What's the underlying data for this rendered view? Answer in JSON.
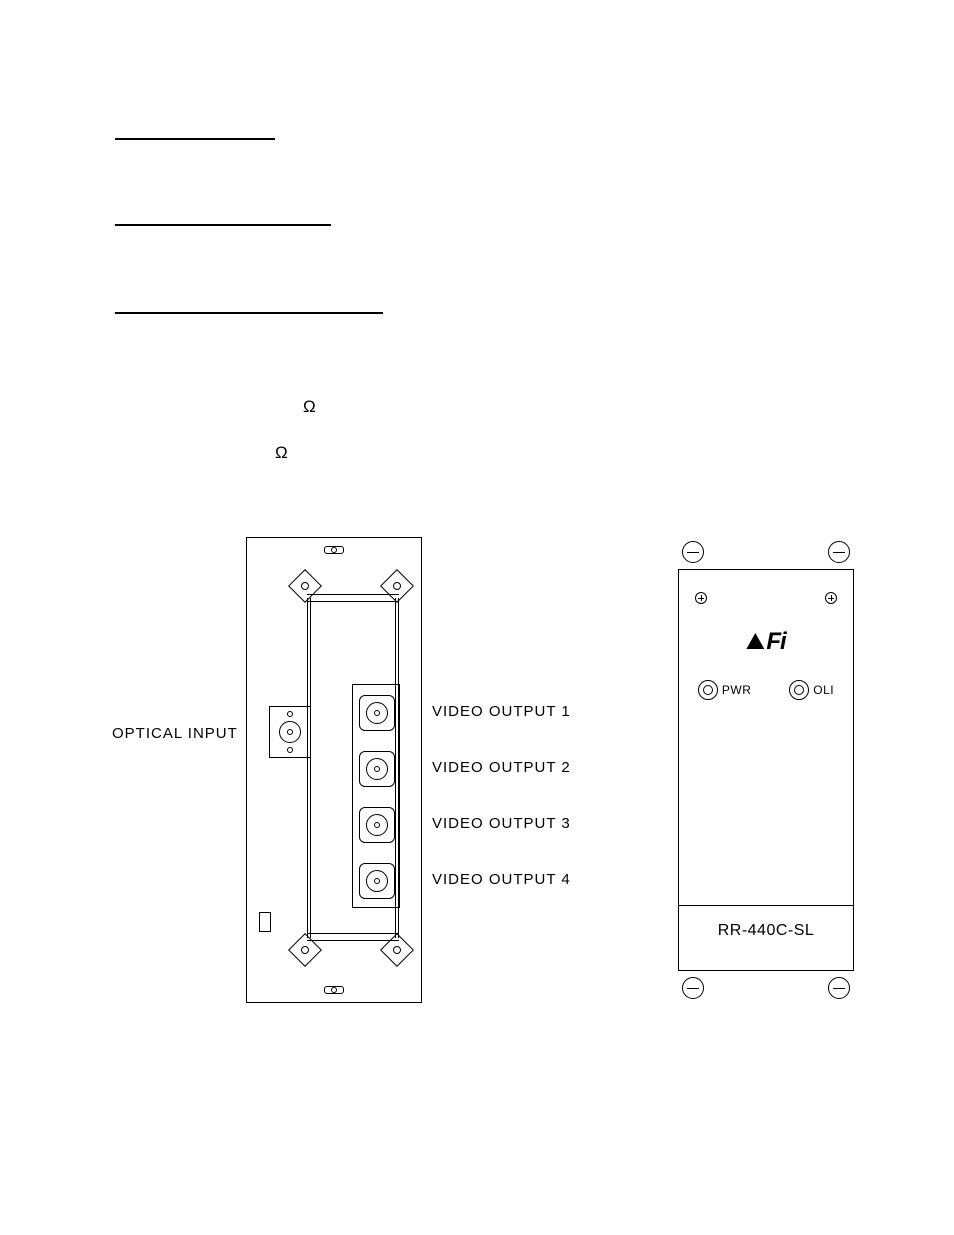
{
  "omega": "Ω",
  "labels": {
    "optical_input": "OPTICAL INPUT",
    "video_out_1": "VIDEO OUTPUT 1",
    "video_out_2": "VIDEO OUTPUT 2",
    "video_out_3": "VIDEO OUTPUT 3",
    "video_out_4": "VIDEO OUTPUT 4"
  },
  "front": {
    "logo_text": "Fi",
    "led_pwr": "PWR",
    "led_oli": "OLI",
    "model": "RR-440C-SL"
  }
}
